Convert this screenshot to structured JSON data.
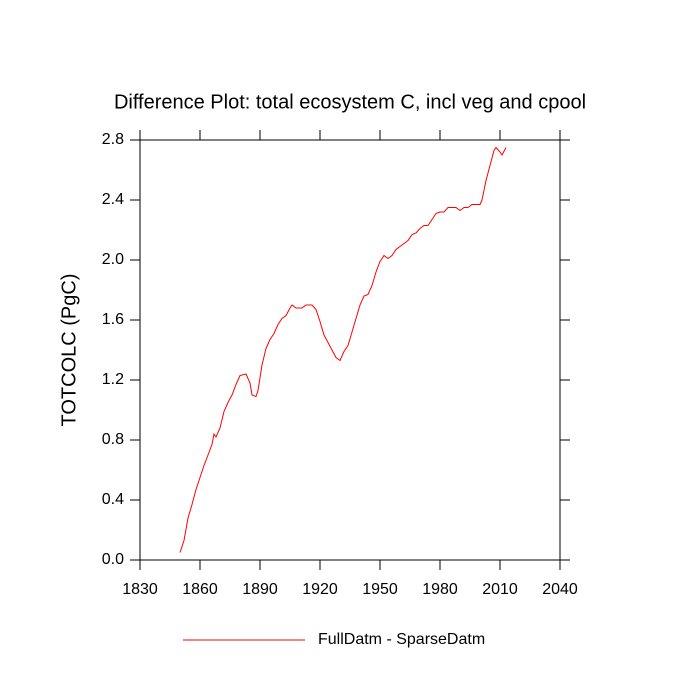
{
  "chart_data": {
    "type": "line",
    "title": "Difference Plot: total ecosystem C, incl veg and cpool",
    "ylabel": "TOTCOLC  (PgC)",
    "x": [
      1850,
      1852,
      1854,
      1856,
      1858,
      1860,
      1862,
      1864,
      1866,
      1867,
      1868,
      1870,
      1872,
      1874,
      1876,
      1878,
      1880,
      1883,
      1885,
      1886,
      1888,
      1889,
      1891,
      1893,
      1895,
      1897,
      1899,
      1901,
      1903,
      1905,
      1906,
      1908,
      1911,
      1913,
      1916,
      1918,
      1920,
      1922,
      1924,
      1926,
      1928,
      1930,
      1932,
      1934,
      1936,
      1938,
      1940,
      1942,
      1944,
      1946,
      1948,
      1950,
      1952,
      1954,
      1956,
      1958,
      1960,
      1962,
      1964,
      1966,
      1968,
      1970,
      1972,
      1974,
      1976,
      1978,
      1980,
      1982,
      1984,
      1986,
      1988,
      1990,
      1992,
      1994,
      1996,
      1998,
      2000,
      2001,
      2003,
      2005,
      2007,
      2008,
      2010,
      2011,
      2013
    ],
    "series": [
      {
        "name": "FullDatm - SparseDatm",
        "color": "#ff0000",
        "values": [
          0.05,
          0.13,
          0.28,
          0.37,
          0.47,
          0.55,
          0.63,
          0.7,
          0.77,
          0.84,
          0.82,
          0.88,
          0.99,
          1.05,
          1.1,
          1.17,
          1.23,
          1.24,
          1.18,
          1.1,
          1.09,
          1.13,
          1.3,
          1.41,
          1.47,
          1.51,
          1.57,
          1.61,
          1.63,
          1.68,
          1.7,
          1.68,
          1.68,
          1.7,
          1.7,
          1.67,
          1.59,
          1.5,
          1.45,
          1.4,
          1.35,
          1.33,
          1.39,
          1.43,
          1.52,
          1.61,
          1.7,
          1.76,
          1.77,
          1.83,
          1.92,
          1.99,
          2.03,
          2.01,
          2.03,
          2.07,
          2.09,
          2.11,
          2.13,
          2.17,
          2.18,
          2.21,
          2.23,
          2.23,
          2.27,
          2.31,
          2.32,
          2.32,
          2.35,
          2.35,
          2.35,
          2.33,
          2.35,
          2.35,
          2.37,
          2.37,
          2.37,
          2.4,
          2.53,
          2.63,
          2.73,
          2.75,
          2.72,
          2.7,
          2.75
        ]
      }
    ],
    "xlim": [
      1830,
      2040
    ],
    "xticks": [
      1830,
      1860,
      1890,
      1920,
      1950,
      1980,
      2010,
      2040
    ],
    "ylim": [
      0,
      2.8
    ],
    "yticks": [
      {
        "value": 0,
        "label": "0.0"
      },
      0.4,
      0.8,
      1.2,
      1.6,
      {
        "value": 2,
        "label": "2.0"
      },
      2.4,
      2.8
    ],
    "legend": "bottom"
  }
}
